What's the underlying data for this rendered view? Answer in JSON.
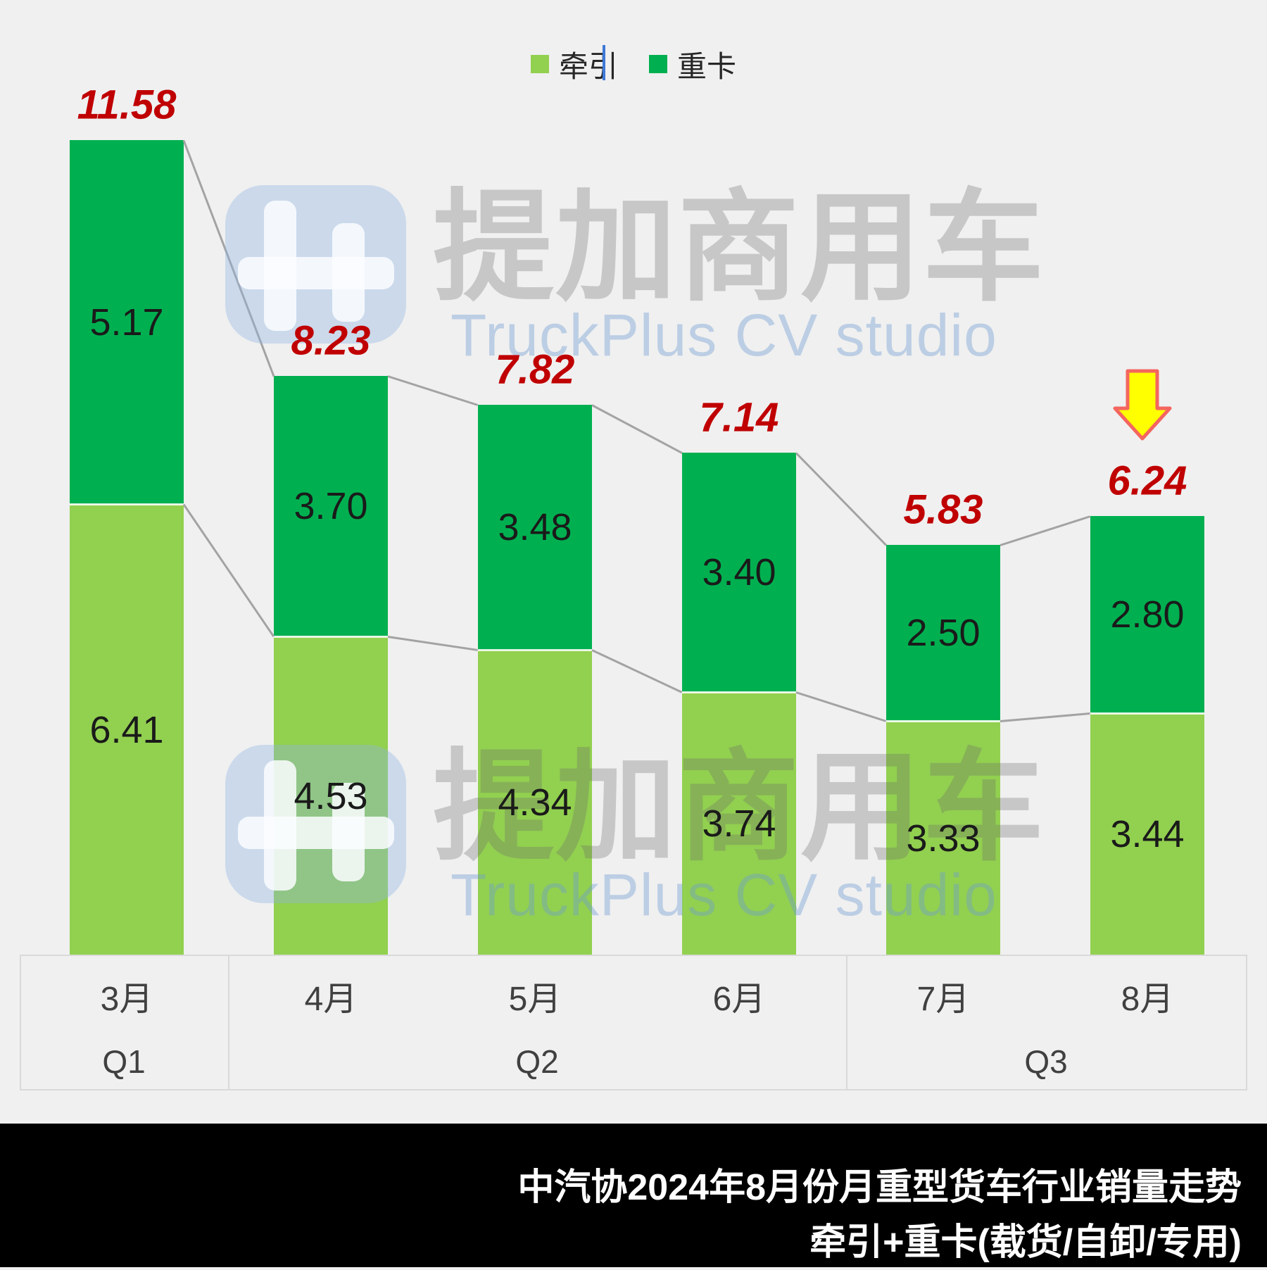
{
  "legend": {
    "items": [
      {
        "label": "牵引",
        "color": "#92D050"
      },
      {
        "label": "重卡",
        "color": "#00B050"
      }
    ]
  },
  "chart_data": {
    "type": "bar",
    "stacked": true,
    "categories": [
      "3月",
      "4月",
      "5月",
      "6月",
      "7月",
      "8月"
    ],
    "quarters": [
      {
        "label": "Q1",
        "month_span": [
          0,
          0
        ]
      },
      {
        "label": "Q2",
        "month_span": [
          1,
          3
        ]
      },
      {
        "label": "Q3",
        "month_span": [
          4,
          5
        ]
      }
    ],
    "series": [
      {
        "name": "牵引",
        "color": "#92D050",
        "values": [
          6.41,
          4.53,
          4.34,
          3.74,
          3.33,
          3.44
        ]
      },
      {
        "name": "重卡",
        "color": "#00B050",
        "values": [
          5.17,
          3.7,
          3.48,
          3.4,
          2.5,
          2.8
        ]
      }
    ],
    "totals": [
      11.58,
      8.23,
      7.82,
      7.14,
      5.83,
      6.24
    ],
    "totals_color": "#C00000",
    "value_decimals": 2,
    "ylim": [
      0,
      11.58
    ],
    "grid": false,
    "legend_position": "top",
    "annotations": [
      {
        "type": "down-arrow",
        "category_index": 5,
        "fill": "#FFFF00",
        "outline": "#F4655F"
      }
    ]
  },
  "watermark": {
    "brand_cn": "提加商用车",
    "brand_en": "TruckPlus CV studio",
    "logo_color": "#8DB4E2",
    "text_color_cn": "#9B9B9B",
    "text_color_en": "#6E9BD2"
  },
  "footer": {
    "line1": "中汽协2024年8月份月重型货车行业销量走势",
    "line2": "牵引+重卡(载货/自卸/专用)",
    "background": "#000000",
    "text_color": "#FFFFFF"
  },
  "colors": {
    "background": "#F0F0F0",
    "connector_line": "#A3A3A3",
    "segment_label": "#1A1A1A",
    "axis_text": "#404040",
    "table_border": "#D9D9D9"
  }
}
